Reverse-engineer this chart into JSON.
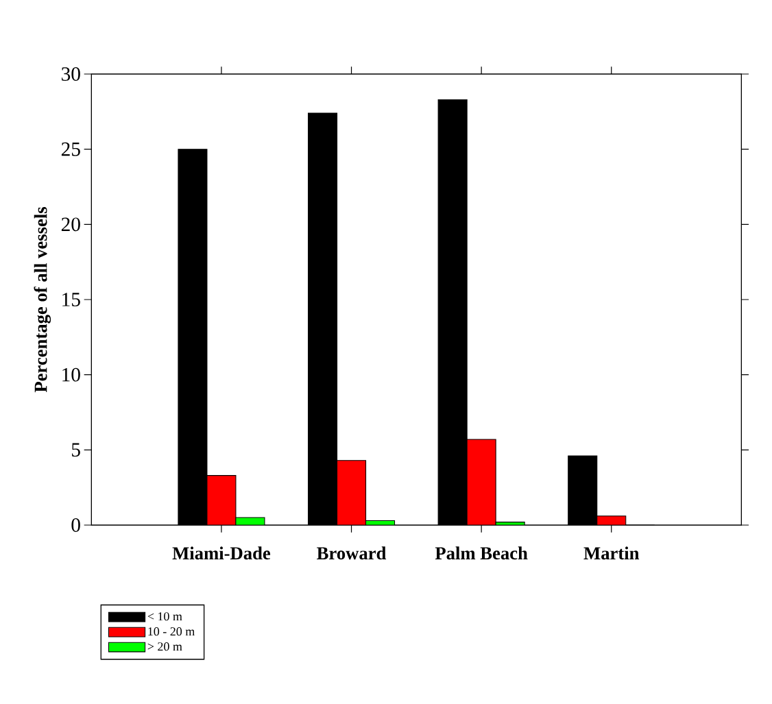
{
  "chart_data": {
    "type": "bar",
    "ylabel": "Percentage of all vessels",
    "categories": [
      "Miami-Dade",
      "Broward",
      "Palm Beach",
      "Martin"
    ],
    "series": [
      {
        "name": "< 10 m",
        "color": "#000000",
        "values": [
          25.0,
          27.4,
          28.3,
          4.6
        ]
      },
      {
        "name": "10 - 20 m",
        "color": "#ff0000",
        "values": [
          3.3,
          4.3,
          5.7,
          0.6
        ]
      },
      {
        "name": "> 20 m",
        "color": "#00ff00",
        "values": [
          0.5,
          0.3,
          0.2,
          0
        ]
      }
    ],
    "ylim": [
      0,
      30
    ],
    "yticks": [
      0,
      5,
      10,
      15,
      20,
      25,
      30
    ],
    "legend": "bottom left",
    "grid": false
  }
}
